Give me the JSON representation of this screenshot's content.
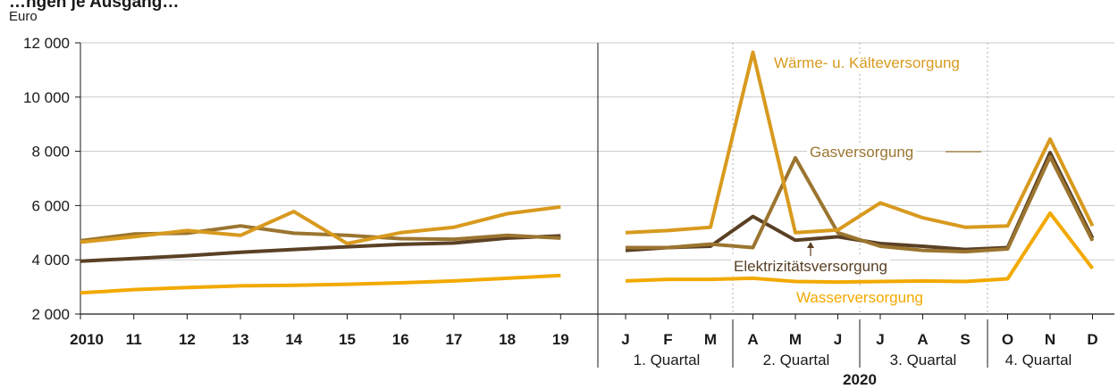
{
  "title": "…ngen je Ausgang…",
  "chart_data": {
    "type": "line",
    "ylabel": "Euro",
    "ylim": [
      2000,
      12000
    ],
    "yticks": [
      2000,
      4000,
      6000,
      8000,
      10000,
      12000
    ],
    "ytick_labels": [
      "2 000",
      "4 000",
      "6 000",
      "8 000",
      "10 000",
      "12 000"
    ],
    "annual": {
      "categories": [
        "2010",
        "11",
        "12",
        "13",
        "14",
        "15",
        "16",
        "17",
        "18",
        "19"
      ]
    },
    "monthly": {
      "categories": [
        "J",
        "F",
        "M",
        "A",
        "M",
        "J",
        "J",
        "A",
        "S",
        "O",
        "N",
        "D"
      ],
      "quarters": [
        "1. Quartal",
        "2. Quartal",
        "3. Quartal",
        "4. Quartal"
      ],
      "year": "2020"
    },
    "series": [
      {
        "name": "Wärme- u. Kälteversorgung",
        "color": "#d89a1e",
        "annual": [
          4650,
          4850,
          5080,
          4900,
          5780,
          4600,
          5000,
          5200,
          5700,
          5950
        ],
        "monthly": [
          5000,
          5080,
          5200,
          11650,
          5000,
          5100,
          6100,
          5550,
          5200,
          5250,
          8450,
          5250
        ]
      },
      {
        "name": "Gasversorgung",
        "color": "#9b7530",
        "annual": [
          4700,
          4950,
          4980,
          5250,
          4980,
          4900,
          4780,
          4760,
          4900,
          4800
        ],
        "monthly": [
          4450,
          4450,
          4580,
          4450,
          7760,
          5000,
          4500,
          4350,
          4300,
          4400,
          7800,
          4700
        ]
      },
      {
        "name": "Elektrizitätsversorgung",
        "color": "#5a4025",
        "annual": [
          3950,
          4050,
          4150,
          4280,
          4380,
          4480,
          4570,
          4620,
          4800,
          4880
        ],
        "monthly": [
          4350,
          4450,
          4500,
          5600,
          4720,
          4850,
          4600,
          4500,
          4380,
          4450,
          7950,
          4800
        ]
      },
      {
        "name": "Wasserversorgung",
        "color": "#f2a900",
        "annual": [
          2780,
          2900,
          2980,
          3040,
          3060,
          3100,
          3150,
          3220,
          3320,
          3420
        ],
        "monthly": [
          3220,
          3280,
          3280,
          3320,
          3200,
          3180,
          3200,
          3220,
          3200,
          3300,
          5720,
          3680
        ]
      }
    ]
  }
}
